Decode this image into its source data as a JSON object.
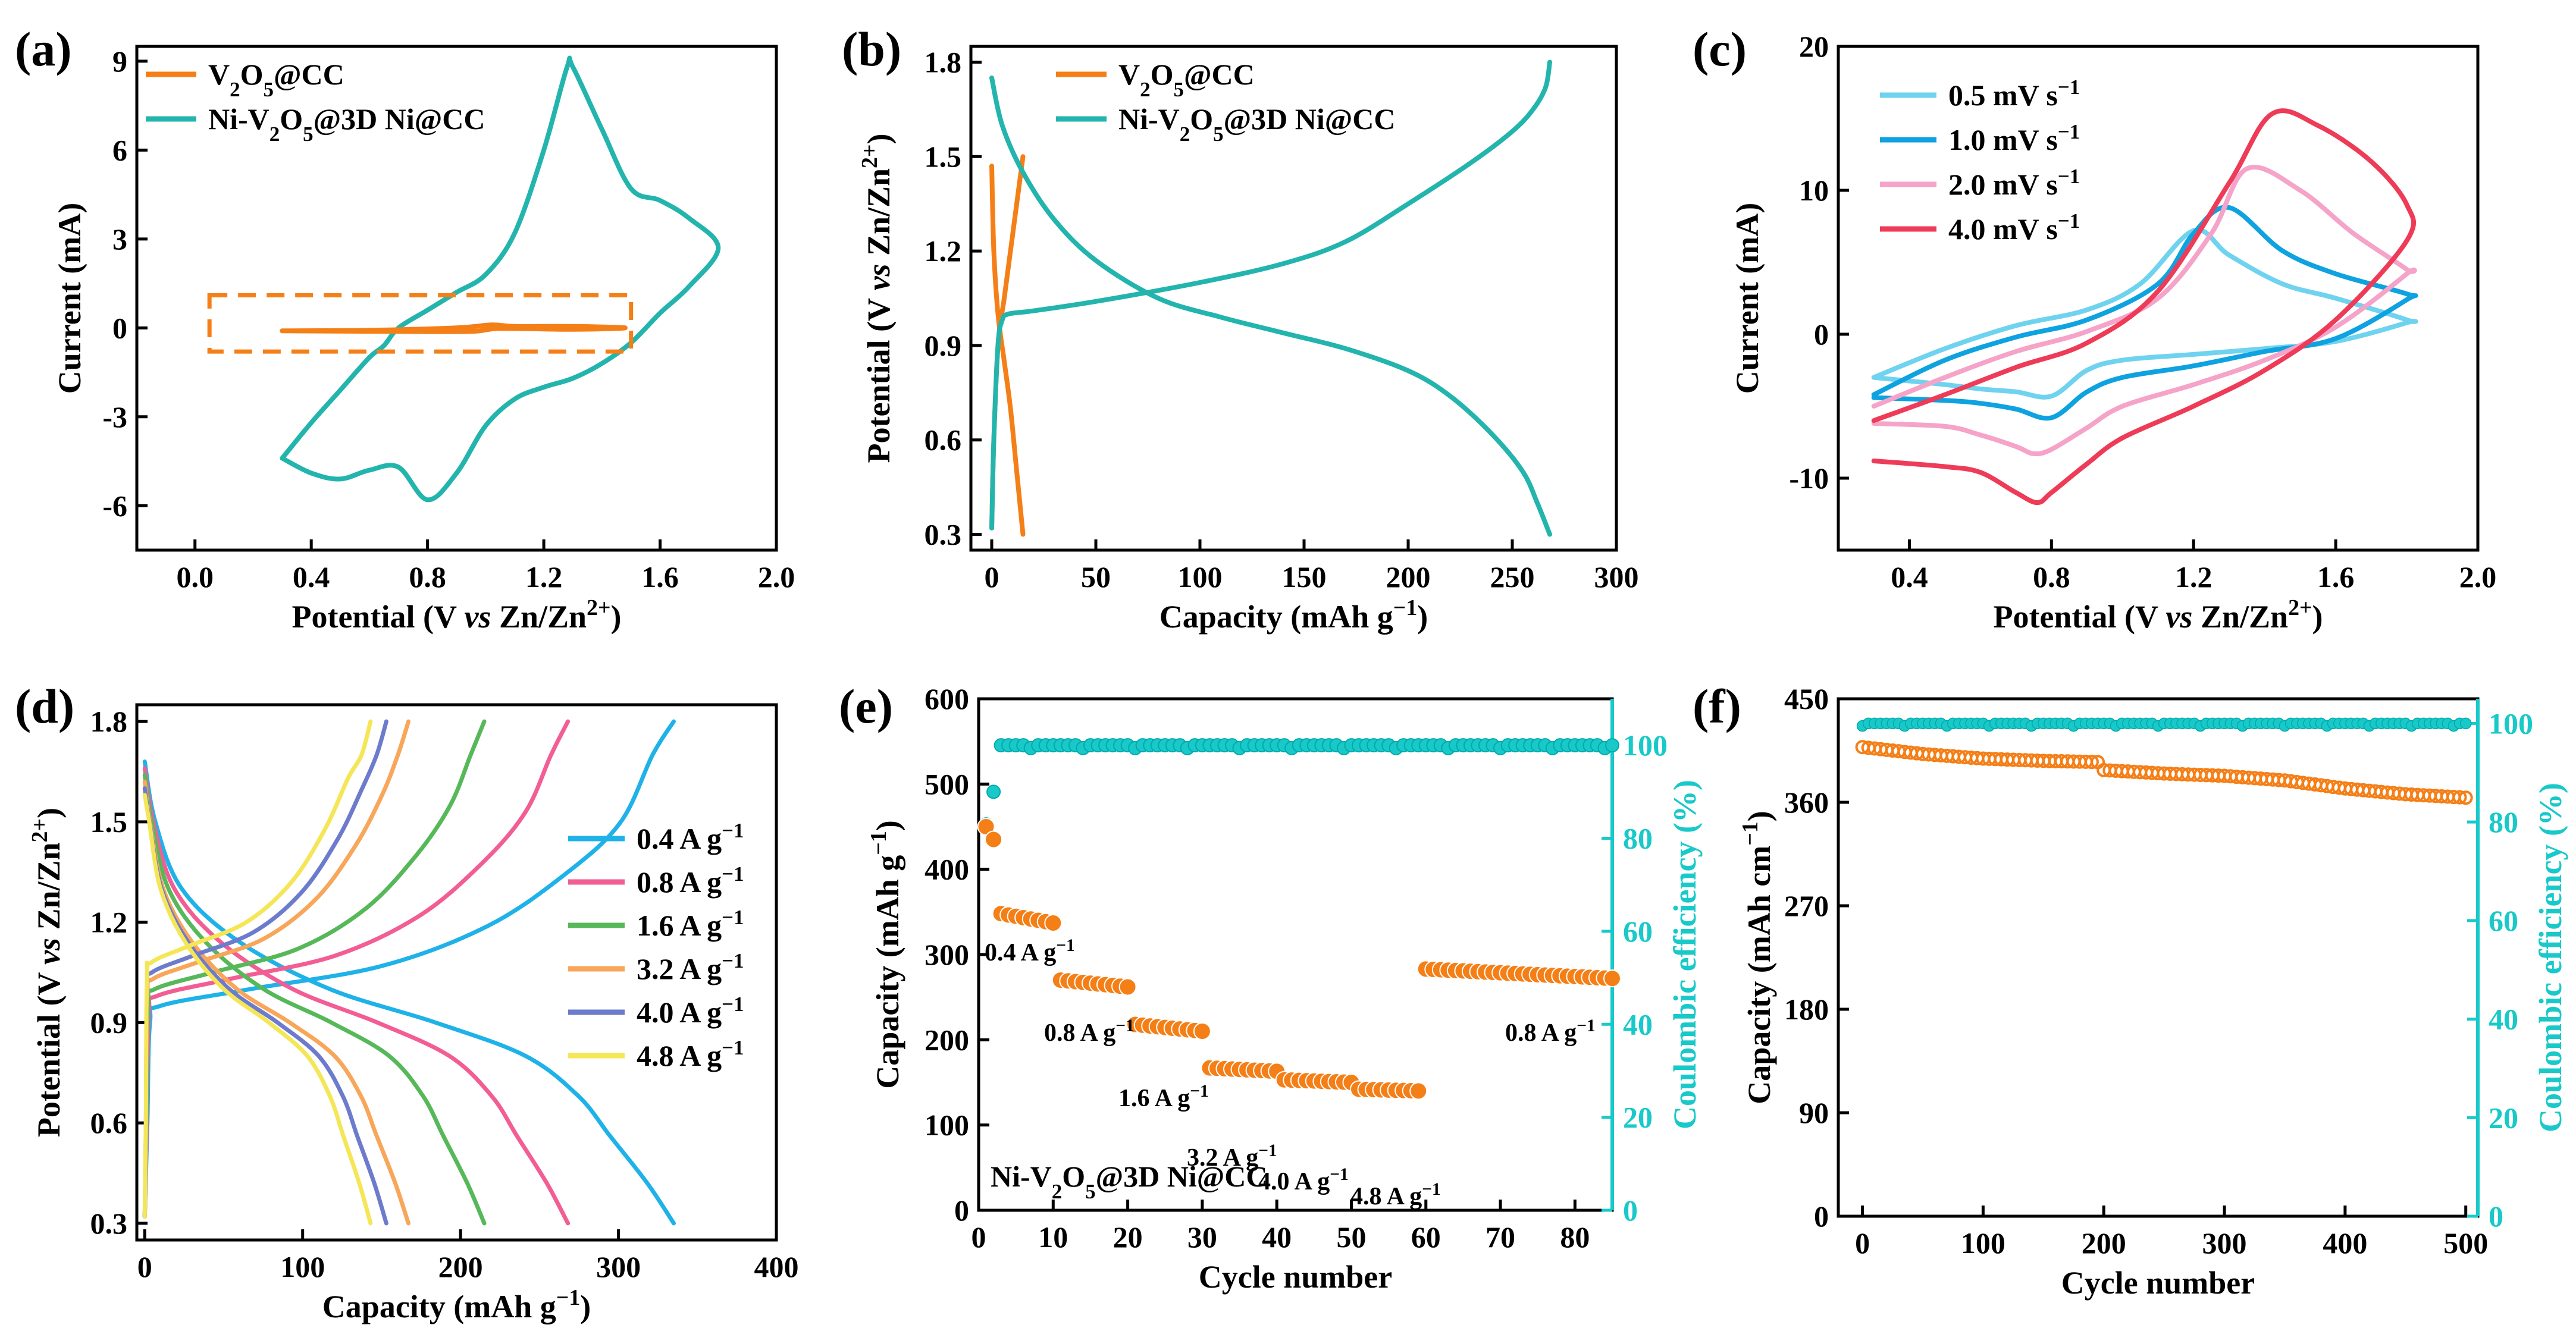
{
  "colors": {
    "orange": "#f57f17",
    "teal": "#23b5ad",
    "c05": "#6fd3ef",
    "c10": "#0ea2e0",
    "c20": "#f5a3c9",
    "c40": "#ee3b58",
    "d04": "#1fb2e8",
    "d08": "#f25e94",
    "d16": "#57b85a",
    "d32": "#f7a65a",
    "d40": "#6d7bcc",
    "d48": "#f5e657",
    "cyan": "#19c9c9"
  },
  "chart_data": [
    {
      "id": "a",
      "panel_label": "(a)",
      "type": "line",
      "xlabel": "Potential (V vs Zn/Zn²⁺)",
      "ylabel": "Current (mA)",
      "xlim": [
        -0.2,
        2.0
      ],
      "ylim": [
        -7.5,
        9.5
      ],
      "xticks": [
        "0.0",
        "0.4",
        "0.8",
        "1.2",
        "1.6",
        "2.0"
      ],
      "yticks": [
        "-6",
        "-3",
        "0",
        "3",
        "6",
        "9"
      ],
      "legend": [
        "V₂O₅@CC",
        "Ni-V₂O₅@3D Ni@CC"
      ],
      "series": [
        {
          "name": "V₂O₅@CC",
          "x": [
            0.3,
            0.6,
            0.9,
            1.02,
            1.1,
            1.3,
            1.48,
            1.3,
            1.05,
            0.95,
            0.7,
            0.3
          ],
          "y": [
            -0.1,
            -0.08,
            0.0,
            0.1,
            0.05,
            0.05,
            0.0,
            -0.05,
            -0.02,
            -0.12,
            -0.12,
            -0.1
          ]
        },
        {
          "name": "Ni-V₂O₅@3D Ni@CC",
          "x": [
            0.3,
            0.4,
            0.5,
            0.6,
            0.7,
            0.8,
            0.9,
            1.0,
            1.1,
            1.2,
            1.3,
            1.4,
            1.5,
            1.6,
            1.7,
            1.8,
            1.7,
            1.6,
            1.5,
            1.4,
            1.3,
            1.28,
            1.2,
            1.1,
            1.0,
            0.9,
            0.8,
            0.7,
            0.65,
            0.6,
            0.5,
            0.4,
            0.3
          ],
          "y": [
            -4.4,
            -4.9,
            -5.1,
            -4.8,
            -4.7,
            -5.8,
            -4.9,
            -3.3,
            -2.4,
            -2.0,
            -1.7,
            -1.2,
            -0.5,
            0.5,
            1.4,
            2.7,
            3.7,
            4.3,
            4.7,
            6.7,
            8.8,
            8.8,
            6.0,
            3.2,
            1.8,
            1.2,
            0.6,
            0.0,
            -0.6,
            -1.0,
            -2.1,
            -3.2,
            -4.4
          ]
        }
      ],
      "annotation": "dashed box around V₂O₅@CC curve"
    },
    {
      "id": "b",
      "panel_label": "(b)",
      "type": "line",
      "xlabel": "Capacity (mAh g⁻¹)",
      "ylabel": "Potential (V vs Zn/Zn²⁺)",
      "xlim": [
        -10,
        300
      ],
      "ylim": [
        0.25,
        1.85
      ],
      "xticks": [
        "0",
        "50",
        "100",
        "150",
        "200",
        "250",
        "300"
      ],
      "yticks": [
        "0.3",
        "0.6",
        "0.9",
        "1.2",
        "1.5",
        "1.8"
      ],
      "legend": [
        "V₂O₅@CC",
        "Ni-V₂O₅@3D Ni@CC"
      ],
      "series": [
        {
          "name": "V₂O₅@CC discharge",
          "x": [
            0,
            1,
            3,
            6,
            9,
            12,
            15
          ],
          "y": [
            1.47,
            1.2,
            1.0,
            0.85,
            0.7,
            0.5,
            0.3
          ]
        },
        {
          "name": "V₂O₅@CC charge",
          "x": [
            0,
            1,
            3,
            6,
            9,
            12,
            15
          ],
          "y": [
            0.32,
            0.6,
            0.9,
            1.05,
            1.2,
            1.35,
            1.5
          ]
        },
        {
          "name": "Ni-V₂O₅@3D Ni@CC discharge",
          "x": [
            0,
            5,
            15,
            30,
            50,
            80,
            110,
            140,
            170,
            200,
            220,
            240,
            255,
            262,
            268
          ],
          "y": [
            1.75,
            1.6,
            1.45,
            1.3,
            1.17,
            1.05,
            0.99,
            0.94,
            0.89,
            0.82,
            0.74,
            0.62,
            0.5,
            0.4,
            0.3
          ]
        },
        {
          "name": "Ni-V₂O₅@3D Ni@CC charge",
          "x": [
            0,
            1,
            3,
            5,
            8,
            20,
            50,
            100,
            140,
            170,
            200,
            230,
            250,
            260,
            266,
            268
          ],
          "y": [
            0.32,
            0.6,
            0.9,
            0.98,
            1.0,
            1.01,
            1.04,
            1.1,
            1.16,
            1.23,
            1.35,
            1.48,
            1.58,
            1.65,
            1.72,
            1.8
          ]
        }
      ]
    },
    {
      "id": "c",
      "panel_label": "(c)",
      "type": "line",
      "xlabel": "Potential (V vs Zn/Zn²⁺)",
      "ylabel": "Current (mA)",
      "xlim": [
        0.2,
        2.0
      ],
      "ylim": [
        -15,
        20
      ],
      "xticks": [
        "0.4",
        "0.8",
        "1.2",
        "1.6",
        "2.0"
      ],
      "yticks": [
        "-10",
        "0",
        "10",
        "20"
      ],
      "legend": [
        "0.5 mV s⁻¹",
        "1.0 mV s⁻¹",
        "2.0 mV s⁻¹",
        "4.0 mV s⁻¹"
      ],
      "series": [
        {
          "name": "0.5 mV s⁻¹",
          "anodic": {
            "x": [
              0.3,
              0.5,
              0.7,
              0.9,
              1.05,
              1.2,
              1.3,
              1.45,
              1.6,
              1.8
            ],
            "y": [
              -3.0,
              -1.0,
              0.6,
              1.7,
              3.5,
              7.2,
              5.5,
              3.5,
              2.5,
              1.0
            ]
          },
          "cathodic": {
            "x": [
              1.8,
              1.6,
              1.4,
              1.2,
              1.0,
              0.9,
              0.8,
              0.7,
              0.6,
              0.5,
              0.3
            ],
            "y": [
              0.8,
              -0.5,
              -1.0,
              -1.4,
              -1.8,
              -2.5,
              -4.3,
              -4.0,
              -3.8,
              -3.5,
              -3.0
            ]
          }
        },
        {
          "name": "1.0 mV s⁻¹",
          "anodic": {
            "x": [
              0.3,
              0.5,
              0.7,
              0.9,
              1.1,
              1.2,
              1.3,
              1.45,
              1.6,
              1.8
            ],
            "y": [
              -4.2,
              -1.8,
              -0.2,
              1.0,
              3.5,
              7.0,
              8.8,
              5.8,
              4.2,
              2.8
            ]
          },
          "cathodic": {
            "x": [
              1.8,
              1.6,
              1.4,
              1.2,
              1.0,
              0.9,
              0.8,
              0.7,
              0.6,
              0.5,
              0.3
            ],
            "y": [
              2.4,
              -0.3,
              -1.2,
              -2.2,
              -3.0,
              -4.0,
              -5.8,
              -5.2,
              -4.8,
              -4.6,
              -4.4
            ]
          }
        },
        {
          "name": "2.0 mV s⁻¹",
          "anodic": {
            "x": [
              0.3,
              0.5,
              0.7,
              0.9,
              1.1,
              1.25,
              1.35,
              1.5,
              1.65,
              1.8
            ],
            "y": [
              -5.0,
              -3.0,
              -1.2,
              0.2,
              2.5,
              7.0,
              11.5,
              10.0,
              7.0,
              4.5
            ]
          },
          "cathodic": {
            "x": [
              1.8,
              1.6,
              1.4,
              1.2,
              1.0,
              0.9,
              0.8,
              0.75,
              0.7,
              0.6,
              0.5,
              0.3
            ],
            "y": [
              4.2,
              0.5,
              -1.8,
              -3.5,
              -5.0,
              -6.5,
              -8.0,
              -8.3,
              -7.8,
              -7.0,
              -6.4,
              -6.2
            ]
          }
        },
        {
          "name": "4.0 mV s⁻¹",
          "anodic": {
            "x": [
              0.3,
              0.5,
              0.7,
              0.9,
              1.1,
              1.3,
              1.42,
              1.55,
              1.7,
              1.8
            ],
            "y": [
              -6.0,
              -4.2,
              -2.3,
              -0.6,
              3.0,
              10.5,
              15.3,
              14.5,
              12.0,
              9.0
            ]
          },
          "cathodic": {
            "x": [
              1.8,
              1.6,
              1.4,
              1.2,
              1.0,
              0.9,
              0.8,
              0.76,
              0.7,
              0.6,
              0.5,
              0.3
            ],
            "y": [
              6.5,
              1.0,
              -2.5,
              -5.0,
              -7.2,
              -9.0,
              -11.0,
              -11.7,
              -11.0,
              -9.6,
              -9.2,
              -8.8
            ]
          }
        }
      ]
    },
    {
      "id": "d",
      "panel_label": "(d)",
      "type": "line",
      "xlabel": "Capacity (mAh g⁻¹)",
      "ylabel": "Potential (V vs Zn/Zn²⁺)",
      "xlim": [
        -5,
        400
      ],
      "ylim": [
        0.25,
        1.85
      ],
      "xticks": [
        "0",
        "100",
        "200",
        "300",
        "400"
      ],
      "yticks": [
        "0.3",
        "0.6",
        "0.9",
        "1.2",
        "1.5",
        "1.8"
      ],
      "legend": [
        "0.4 A g⁻¹",
        "0.8 A g⁻¹",
        "1.6 A g⁻¹",
        "3.2 A g⁻¹",
        "4.0 A g⁻¹",
        "4.8 A g⁻¹"
      ],
      "series": [
        {
          "name": "0.4 A g⁻¹",
          "capacity": 335,
          "plateau_charge": 0.95
        },
        {
          "name": "0.8 A g⁻¹",
          "capacity": 268,
          "plateau_charge": 0.98
        },
        {
          "name": "1.6 A g⁻¹",
          "capacity": 215,
          "plateau_charge": 1.0
        },
        {
          "name": "3.2 A g⁻¹",
          "capacity": 167,
          "plateau_charge": 1.03
        },
        {
          "name": "4.0 A g⁻¹",
          "capacity": 153,
          "plateau_charge": 1.05
        },
        {
          "name": "4.8 A g⁻¹",
          "capacity": 143,
          "plateau_charge": 1.08
        }
      ]
    },
    {
      "id": "e",
      "panel_label": "(e)",
      "type": "scatter",
      "xlabel": "Cycle number",
      "ylabel": "Capacity (mAh g⁻¹)",
      "ylabel_right": "Coulombic efficiency (%)",
      "xlim": [
        0,
        85
      ],
      "ylim": [
        0,
        600
      ],
      "ylim_right": [
        0,
        110
      ],
      "xticks": [
        "0",
        "10",
        "20",
        "30",
        "40",
        "50",
        "60",
        "70",
        "80"
      ],
      "yticks": [
        "0",
        "100",
        "200",
        "300",
        "400",
        "500",
        "600"
      ],
      "yticks_right": [
        "0",
        "20",
        "40",
        "60",
        "80",
        "100"
      ],
      "inner_label": "Ni-V₂O₅@3D Ni@CC",
      "rate_labels": [
        "0.4 A g⁻¹",
        "0.8 A g⁻¹",
        "1.6 A g⁻¹",
        "3.2 A g⁻¹",
        "4.0 A g⁻¹",
        "4.8 A g⁻¹",
        "0.8 A g⁻¹"
      ],
      "segments": [
        {
          "cycles": [
            1,
            2
          ],
          "capacity": [
            450,
            435
          ]
        },
        {
          "cycles": [
            3,
            10
          ],
          "capacity_start": 348,
          "capacity_end": 337
        },
        {
          "cycles": [
            11,
            20
          ],
          "capacity_start": 270,
          "capacity_end": 262
        },
        {
          "cycles": [
            21,
            30
          ],
          "capacity_start": 218,
          "capacity_end": 210
        },
        {
          "cycles": [
            31,
            40
          ],
          "capacity_start": 167,
          "capacity_end": 163
        },
        {
          "cycles": [
            41,
            50
          ],
          "capacity_start": 153,
          "capacity_end": 150
        },
        {
          "cycles": [
            51,
            59
          ],
          "capacity_start": 142,
          "capacity_end": 140
        },
        {
          "cycles": [
            60,
            85
          ],
          "capacity_start": 283,
          "capacity_end": 272
        }
      ],
      "ce_first": [
        83,
        90
      ],
      "ce_steady": 100
    },
    {
      "id": "f",
      "panel_label": "(f)",
      "type": "scatter",
      "xlabel": "Cycle number",
      "ylabel": "Capacity (mAh cm⁻¹)",
      "ylabel_right": "Coulombic efficiency (%)",
      "xlim": [
        -20,
        510
      ],
      "ylim": [
        0,
        450
      ],
      "ylim_right": [
        0,
        105
      ],
      "xticks": [
        "0",
        "100",
        "200",
        "300",
        "400",
        "500"
      ],
      "yticks": [
        "0",
        "90",
        "180",
        "270",
        "360",
        "450"
      ],
      "yticks_right": [
        "0",
        "20",
        "40",
        "60",
        "80",
        "100"
      ],
      "capacity_points": {
        "x": [
          0,
          50,
          100,
          150,
          195,
          200,
          250,
          300,
          350,
          400,
          450,
          500
        ],
        "y": [
          408,
          402,
          398,
          396,
          395,
          388,
          385,
          383,
          379,
          372,
          367,
          364
        ]
      },
      "ce_steady": 100
    }
  ]
}
